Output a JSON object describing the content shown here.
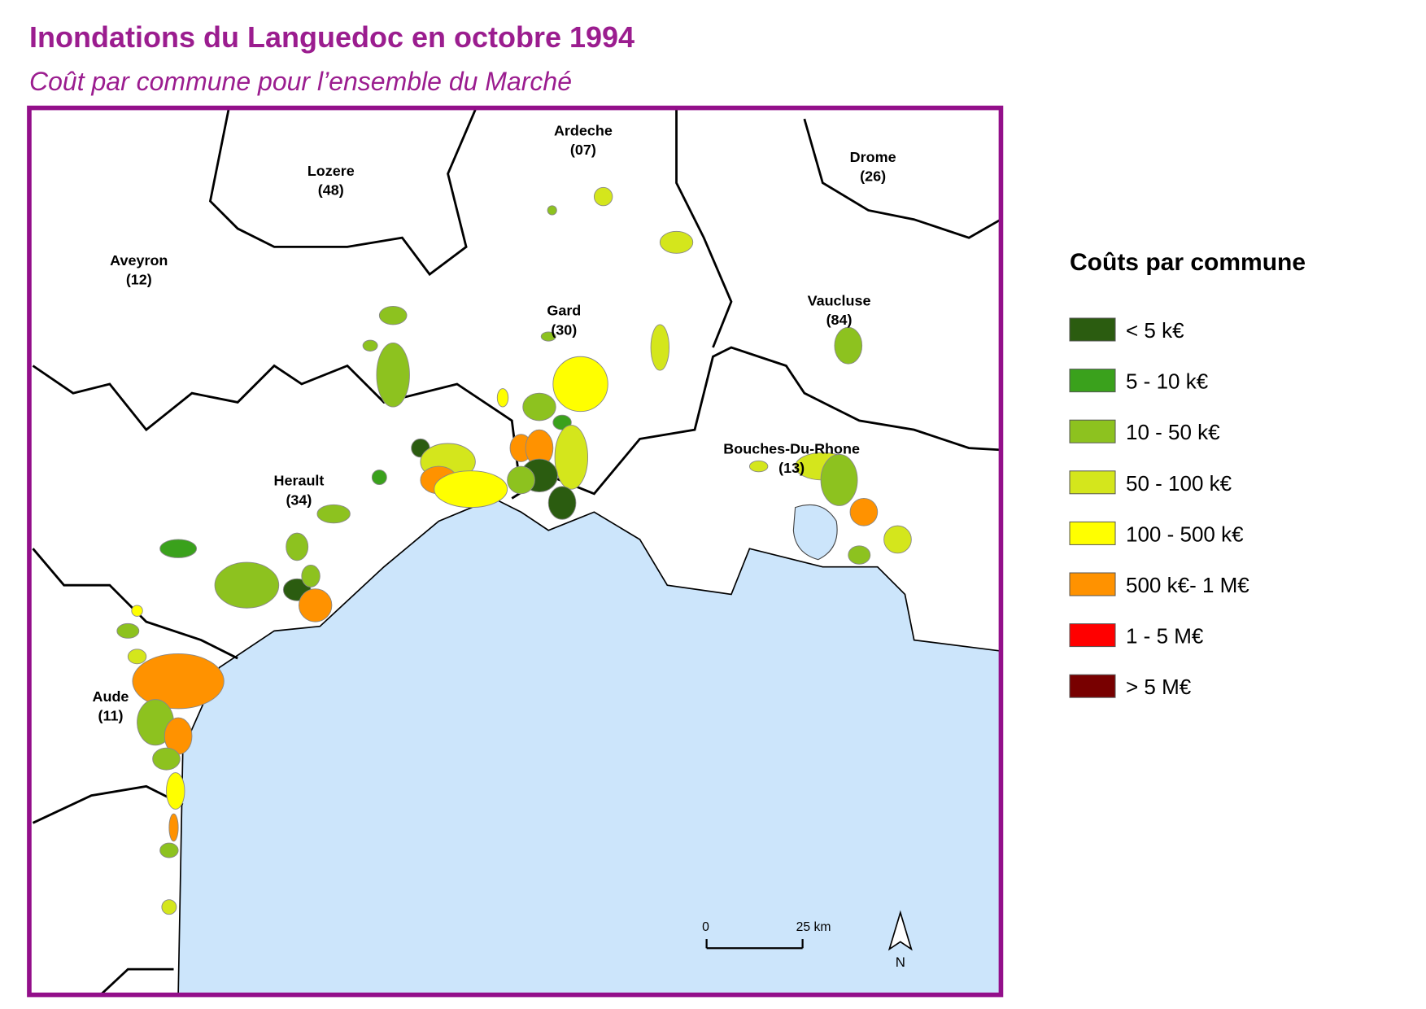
{
  "header": {
    "title": "Inondations du Languedoc en octobre 1994",
    "subtitle": "Coût par commune pour l’ensemble du Marché"
  },
  "legend": {
    "title": "Coûts par commune",
    "items": [
      {
        "label": "< 5 k€",
        "color": "#2b5c10"
      },
      {
        "label": "5 - 10 k€",
        "color": "#3aa11c"
      },
      {
        "label": "10 - 50 k€",
        "color": "#8dc21f"
      },
      {
        "label": "50 - 100 k€",
        "color": "#d4e61c"
      },
      {
        "label": "100 - 500 k€",
        "color": "#ffff00"
      },
      {
        "label": "500 k€- 1 M€",
        "color": "#ff9200"
      },
      {
        "label": "1 - 5 M€",
        "color": "#ff0000"
      },
      {
        "label": "> 5 M€",
        "color": "#780000"
      }
    ]
  },
  "map": {
    "departments": [
      {
        "name": "Ardeche",
        "code": "(07)"
      },
      {
        "name": "Lozere",
        "code": "(48)"
      },
      {
        "name": "Drome",
        "code": "(26)"
      },
      {
        "name": "Aveyron",
        "code": "(12)"
      },
      {
        "name": "Vaucluse",
        "code": "(84)"
      },
      {
        "name": "Gard",
        "code": "(30)"
      },
      {
        "name": "Bouches-Du-Rhone",
        "code": "(13)"
      },
      {
        "name": "Herault",
        "code": "(34)"
      },
      {
        "name": "Aude",
        "code": "(11)"
      }
    ],
    "scale_bar": {
      "start": "0",
      "end": "25 km"
    },
    "north": "N"
  }
}
